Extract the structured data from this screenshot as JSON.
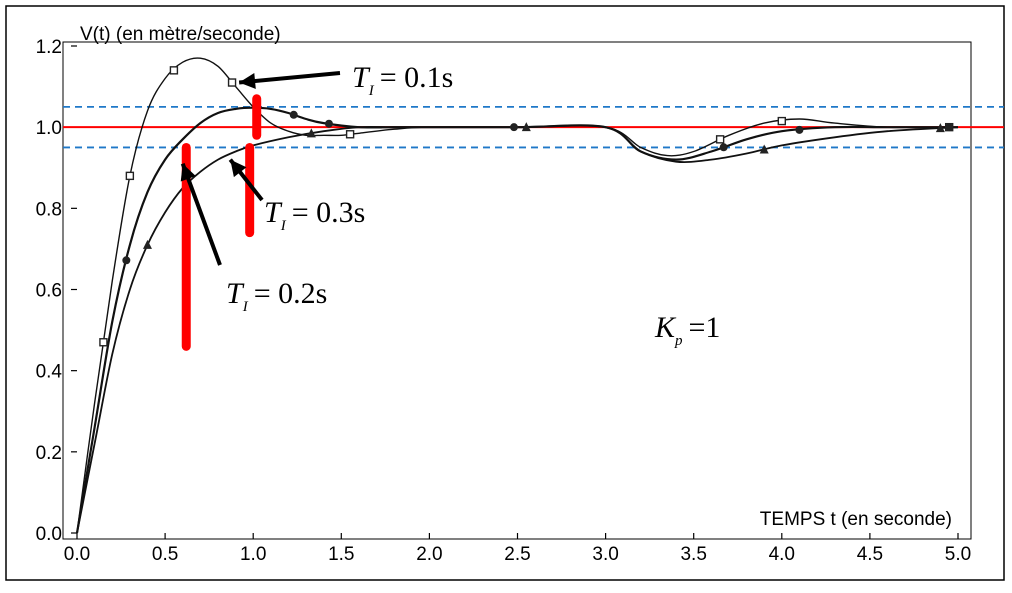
{
  "chart_data": {
    "type": "line",
    "title": "",
    "xlabel": "TEMPS t (en seconde)",
    "ylabel": "V(t) (en mètre/seconde)",
    "xlim": [
      0,
      5
    ],
    "ylim": [
      0,
      1.2
    ],
    "x_ticks": [
      "0.0",
      "0.5",
      "1.0",
      "1.5",
      "2.0",
      "2.5",
      "3.0",
      "3.5",
      "4.0",
      "4.5",
      "5.0"
    ],
    "y_ticks": [
      "0.0",
      "0.2",
      "0.4",
      "0.6",
      "0.8",
      "1.0",
      "1.2"
    ],
    "grid": false,
    "series": [
      {
        "name": "T_I = 0.1s",
        "marker": "square",
        "x": [
          0,
          0.1,
          0.2,
          0.3,
          0.4,
          0.5,
          0.6,
          0.7,
          0.8,
          0.9,
          1.0,
          1.1,
          1.2,
          1.3,
          1.4,
          1.5,
          1.6,
          1.8,
          2.0,
          2.5,
          3.0,
          3.2,
          3.35,
          3.5,
          3.7,
          3.9,
          4.1,
          4.3,
          4.6,
          5.0
        ],
        "y": [
          0,
          0.32,
          0.62,
          0.88,
          1.04,
          1.12,
          1.16,
          1.17,
          1.15,
          1.1,
          1.05,
          1.01,
          0.99,
          0.98,
          0.98,
          0.98,
          0.985,
          0.995,
          1.0,
          1.0,
          1.0,
          0.95,
          0.93,
          0.94,
          0.98,
          1.01,
          1.02,
          1.01,
          1.0,
          1.0
        ],
        "markers_x": [
          0.15,
          0.3,
          0.55,
          0.88,
          1.55,
          3.65,
          4.0,
          4.95
        ]
      },
      {
        "name": "T_I = 0.2s",
        "marker": "circle",
        "x": [
          0,
          0.1,
          0.2,
          0.3,
          0.4,
          0.5,
          0.6,
          0.7,
          0.8,
          0.9,
          1.0,
          1.1,
          1.2,
          1.3,
          1.4,
          1.6,
          1.8,
          2.0,
          2.5,
          3.0,
          3.2,
          3.4,
          3.6,
          3.8,
          4.0,
          4.3,
          4.6,
          5.0
        ],
        "y": [
          0,
          0.26,
          0.52,
          0.71,
          0.84,
          0.92,
          0.97,
          1.01,
          1.035,
          1.045,
          1.048,
          1.045,
          1.035,
          1.02,
          1.01,
          1.0,
          1.0,
          1.0,
          1.0,
          1.0,
          0.94,
          0.92,
          0.94,
          0.97,
          0.99,
          1.0,
          1.0,
          1.0
        ],
        "markers_x": [
          0.28,
          1.23,
          1.43,
          2.48,
          3.67,
          4.1,
          4.95
        ]
      },
      {
        "name": "T_I = 0.3s",
        "marker": "triangle",
        "x": [
          0,
          0.1,
          0.2,
          0.3,
          0.4,
          0.5,
          0.6,
          0.7,
          0.8,
          0.9,
          1.0,
          1.2,
          1.4,
          1.6,
          1.8,
          2.0,
          2.5,
          3.0,
          3.2,
          3.4,
          3.6,
          3.8,
          4.0,
          4.3,
          4.6,
          5.0
        ],
        "y": [
          0,
          0.22,
          0.44,
          0.6,
          0.71,
          0.79,
          0.85,
          0.89,
          0.92,
          0.94,
          0.955,
          0.975,
          0.99,
          1.0,
          1.0,
          1.0,
          1.0,
          1.0,
          0.94,
          0.915,
          0.92,
          0.935,
          0.955,
          0.975,
          0.99,
          1.0
        ],
        "markers_x": [
          0.4,
          1.33,
          2.55,
          3.9,
          4.9
        ]
      }
    ],
    "reference_lines": [
      {
        "y": 1.0,
        "color": "#ff0000",
        "style": "solid"
      },
      {
        "y": 1.05,
        "color": "#1f78c8",
        "style": "dashed"
      },
      {
        "y": 0.95,
        "color": "#1f78c8",
        "style": "dashed"
      }
    ],
    "highlight_bars": [
      {
        "x": 0.62,
        "y_top": 0.95,
        "y_bottom": 0.46
      },
      {
        "x": 0.98,
        "y_top": 0.95,
        "y_bottom": 0.74
      },
      {
        "x": 1.02,
        "y_top": 1.07,
        "y_bottom": 0.98
      }
    ],
    "annotations": [
      {
        "label": "T_I = 0.1s",
        "main": "T",
        "sub": "I",
        "rest": "= 0.1s",
        "arrow_to": [
          0.92,
          1.11
        ]
      },
      {
        "label": "T_I = 0.3s",
        "main": "T",
        "sub": "I",
        "rest": "= 0.3s",
        "arrow_to": [
          0.87,
          0.92
        ]
      },
      {
        "label": "T_I = 0.2s",
        "main": "T",
        "sub": "I",
        "rest": "= 0.2s",
        "arrow_to": [
          0.6,
          0.91
        ]
      },
      {
        "label": "K_p = 1",
        "main": "K",
        "sub": "p",
        "rest": "=1"
      }
    ]
  }
}
